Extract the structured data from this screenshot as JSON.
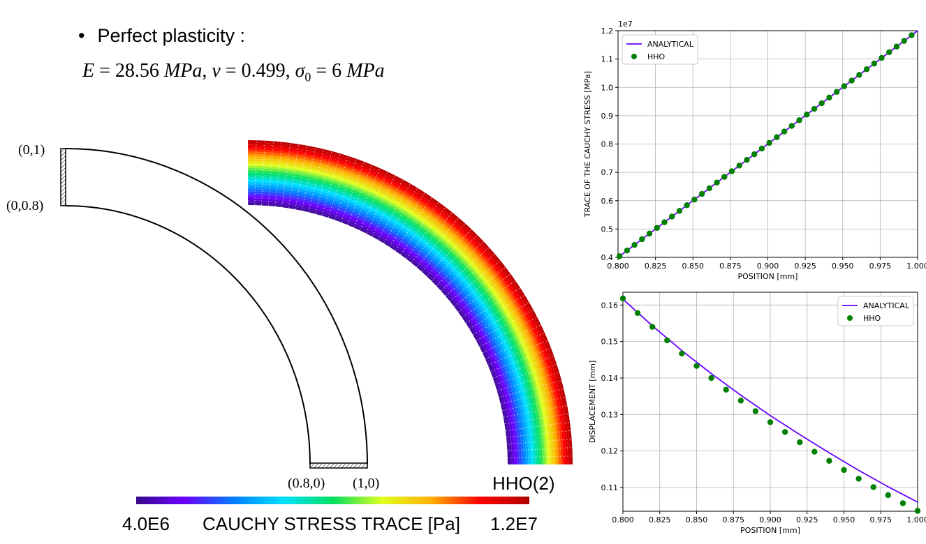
{
  "slide": {
    "bullet_text": "Perfect plasticity :",
    "eq": {
      "E_sym": "E",
      "E_val": " = 28.56 ",
      "E_unit": "MPa",
      "nu_sym": "ν",
      "nu_val": " = 0.499, ",
      "sigma_sym": "σ",
      "sigma_sub": "0",
      "sigma_val": " = 6 ",
      "sigma_unit": "MPa"
    },
    "point_labels": [
      "(0,1)",
      "(0,0.8)",
      "(0.8,0)",
      "(1,0)"
    ],
    "mesh_label": "HHO(2)",
    "colorbar": {
      "min_label": "4.0E6",
      "title": "CAUCHY STRESS TRACE [Pa]",
      "max_label": "1.2E7",
      "colors": [
        "#3a0a8c",
        "#6a00ff",
        "#0080ff",
        "#00e0ff",
        "#00e060",
        "#e0ff20",
        "#ffb000",
        "#ff0000",
        "#b00000"
      ]
    }
  },
  "chart_data": [
    {
      "type": "line",
      "offset_text": "1e7",
      "xlabel": "POSITION [mm]",
      "ylabel": "TRACE OF THE CAUCHY STRESS [MPa]",
      "xlim": [
        0.8,
        1.0
      ],
      "ylim": [
        0.4,
        1.2
      ],
      "xticks": [
        0.8,
        0.825,
        0.85,
        0.875,
        0.9,
        0.925,
        0.95,
        0.975,
        1.0
      ],
      "xtick_labels": [
        "0.800",
        "0.825",
        "0.850",
        "0.875",
        "0.900",
        "0.925",
        "0.950",
        "0.975",
        "1.000"
      ],
      "yticks": [
        0.4,
        0.5,
        0.6,
        0.7,
        0.8,
        0.9,
        1.0,
        1.1,
        1.2
      ],
      "ytick_labels": [
        "0.4",
        "0.5",
        "0.6",
        "0.7",
        "0.8",
        "0.9",
        "1.0",
        "1.1",
        "1.2"
      ],
      "grid": true,
      "legend_position": "top-left",
      "series": [
        {
          "name": "ANALYTICAL",
          "kind": "line",
          "color": "#6600ff",
          "x": [
            0.8,
            1.0
          ],
          "y": [
            0.4,
            1.2
          ]
        },
        {
          "name": "HHO",
          "kind": "scatter",
          "color": "#008000",
          "x": [
            0.801,
            0.806,
            0.811,
            0.816,
            0.821,
            0.826,
            0.831,
            0.836,
            0.841,
            0.846,
            0.851,
            0.856,
            0.861,
            0.866,
            0.871,
            0.876,
            0.881,
            0.886,
            0.891,
            0.896,
            0.901,
            0.906,
            0.911,
            0.916,
            0.921,
            0.926,
            0.931,
            0.936,
            0.941,
            0.946,
            0.951,
            0.956,
            0.961,
            0.966,
            0.971,
            0.976,
            0.981,
            0.986,
            0.991,
            0.996
          ],
          "y": [
            0.404,
            0.424,
            0.444,
            0.464,
            0.484,
            0.504,
            0.524,
            0.544,
            0.564,
            0.584,
            0.604,
            0.624,
            0.644,
            0.664,
            0.684,
            0.704,
            0.724,
            0.744,
            0.764,
            0.784,
            0.804,
            0.824,
            0.844,
            0.864,
            0.884,
            0.904,
            0.924,
            0.944,
            0.964,
            0.984,
            1.004,
            1.024,
            1.044,
            1.064,
            1.084,
            1.104,
            1.124,
            1.144,
            1.164,
            1.184
          ]
        }
      ]
    },
    {
      "type": "line",
      "xlabel": "POSITION [mm]",
      "ylabel": "DISPLACEMENT [mm]",
      "xlim": [
        0.8,
        1.0
      ],
      "ylim": [
        0.1035,
        0.1635
      ],
      "xticks": [
        0.8,
        0.825,
        0.85,
        0.875,
        0.9,
        0.925,
        0.95,
        0.975,
        1.0
      ],
      "xtick_labels": [
        "0.800",
        "0.825",
        "0.850",
        "0.875",
        "0.900",
        "0.925",
        "0.950",
        "0.975",
        "1.000"
      ],
      "yticks": [
        0.11,
        0.12,
        0.13,
        0.14,
        0.15,
        0.16
      ],
      "ytick_labels": [
        "0.11",
        "0.12",
        "0.13",
        "0.14",
        "0.15",
        "0.16"
      ],
      "grid": true,
      "legend_position": "top-right",
      "series": [
        {
          "name": "ANALYTICAL",
          "kind": "line",
          "color": "#6600ff",
          "x": [
            0.8,
            0.82,
            0.84,
            0.86,
            0.88,
            0.9,
            0.92,
            0.94,
            0.96,
            0.98,
            1.0
          ],
          "y": [
            0.1616,
            0.1543,
            0.1475,
            0.1412,
            0.1353,
            0.1297,
            0.1245,
            0.1195,
            0.1147,
            0.1102,
            0.106
          ]
        },
        {
          "name": "HHO",
          "kind": "scatter",
          "color": "#008000",
          "x": [
            0.8,
            0.81,
            0.82,
            0.83,
            0.84,
            0.85,
            0.86,
            0.87,
            0.88,
            0.89,
            0.9,
            0.91,
            0.92,
            0.93,
            0.94,
            0.95,
            0.96,
            0.97,
            0.98,
            0.99,
            1.0
          ],
          "y": [
            0.1618,
            0.1578,
            0.154,
            0.1503,
            0.1467,
            0.1433,
            0.14,
            0.1368,
            0.1338,
            0.1309,
            0.1279,
            0.1252,
            0.1224,
            0.1198,
            0.1173,
            0.1148,
            0.1124,
            0.1101,
            0.1079,
            0.1057,
            0.1036
          ]
        }
      ]
    }
  ]
}
